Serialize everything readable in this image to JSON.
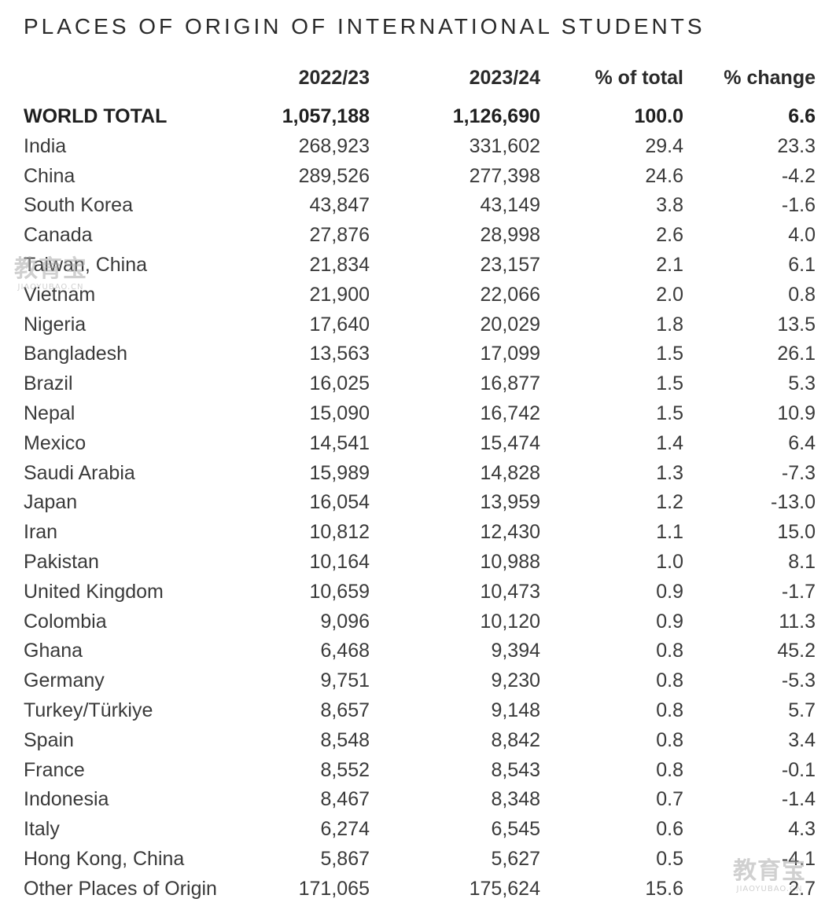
{
  "title": "PLACES OF ORIGIN OF INTERNATIONAL STUDENTS",
  "columns": {
    "y2022": "2022/23",
    "y2023": "2023/24",
    "pct_total": "% of total",
    "pct_change": "% change"
  },
  "total": {
    "label": "WORLD TOTAL",
    "y2022": "1,057,188",
    "y2023": "1,126,690",
    "pct_total": "100.0",
    "pct_change": "6.6"
  },
  "rows": [
    {
      "country": "India",
      "y2022": "268,923",
      "y2023": "331,602",
      "pct_total": "29.4",
      "pct_change": "23.3"
    },
    {
      "country": "China",
      "y2022": "289,526",
      "y2023": "277,398",
      "pct_total": "24.6",
      "pct_change": "-4.2"
    },
    {
      "country": "South Korea",
      "y2022": "43,847",
      "y2023": "43,149",
      "pct_total": "3.8",
      "pct_change": "-1.6"
    },
    {
      "country": "Canada",
      "y2022": "27,876",
      "y2023": "28,998",
      "pct_total": "2.6",
      "pct_change": "4.0"
    },
    {
      "country": "Taiwan, China",
      "y2022": "21,834",
      "y2023": "23,157",
      "pct_total": "2.1",
      "pct_change": "6.1"
    },
    {
      "country": "Vietnam",
      "y2022": "21,900",
      "y2023": "22,066",
      "pct_total": "2.0",
      "pct_change": "0.8"
    },
    {
      "country": "Nigeria",
      "y2022": "17,640",
      "y2023": "20,029",
      "pct_total": "1.8",
      "pct_change": "13.5"
    },
    {
      "country": "Bangladesh",
      "y2022": "13,563",
      "y2023": "17,099",
      "pct_total": "1.5",
      "pct_change": "26.1"
    },
    {
      "country": "Brazil",
      "y2022": "16,025",
      "y2023": "16,877",
      "pct_total": "1.5",
      "pct_change": "5.3"
    },
    {
      "country": "Nepal",
      "y2022": "15,090",
      "y2023": "16,742",
      "pct_total": "1.5",
      "pct_change": "10.9"
    },
    {
      "country": "Mexico",
      "y2022": "14,541",
      "y2023": "15,474",
      "pct_total": "1.4",
      "pct_change": "6.4"
    },
    {
      "country": "Saudi Arabia",
      "y2022": "15,989",
      "y2023": "14,828",
      "pct_total": "1.3",
      "pct_change": "-7.3"
    },
    {
      "country": "Japan",
      "y2022": "16,054",
      "y2023": "13,959",
      "pct_total": "1.2",
      "pct_change": "-13.0"
    },
    {
      "country": "Iran",
      "y2022": "10,812",
      "y2023": "12,430",
      "pct_total": "1.1",
      "pct_change": "15.0"
    },
    {
      "country": "Pakistan",
      "y2022": "10,164",
      "y2023": "10,988",
      "pct_total": "1.0",
      "pct_change": "8.1"
    },
    {
      "country": "United Kingdom",
      "y2022": "10,659",
      "y2023": "10,473",
      "pct_total": "0.9",
      "pct_change": "-1.7"
    },
    {
      "country": "Colombia",
      "y2022": "9,096",
      "y2023": "10,120",
      "pct_total": "0.9",
      "pct_change": "11.3"
    },
    {
      "country": "Ghana",
      "y2022": "6,468",
      "y2023": "9,394",
      "pct_total": "0.8",
      "pct_change": "45.2"
    },
    {
      "country": "Germany",
      "y2022": "9,751",
      "y2023": "9,230",
      "pct_total": "0.8",
      "pct_change": "-5.3"
    },
    {
      "country": "Turkey/Türkiye",
      "y2022": "8,657",
      "y2023": "9,148",
      "pct_total": "0.8",
      "pct_change": "5.7"
    },
    {
      "country": "Spain",
      "y2022": "8,548",
      "y2023": "8,842",
      "pct_total": "0.8",
      "pct_change": "3.4"
    },
    {
      "country": "France",
      "y2022": "8,552",
      "y2023": "8,543",
      "pct_total": "0.8",
      "pct_change": "-0.1"
    },
    {
      "country": "Indonesia",
      "y2022": "8,467",
      "y2023": "8,348",
      "pct_total": "0.7",
      "pct_change": "-1.4"
    },
    {
      "country": "Italy",
      "y2022": "6,274",
      "y2023": "6,545",
      "pct_total": "0.6",
      "pct_change": "4.3"
    },
    {
      "country": "Hong Kong, China",
      "y2022": "5,867",
      "y2023": "5,627",
      "pct_total": "0.5",
      "pct_change": "-4.1"
    },
    {
      "country": "Other Places of Origin",
      "y2022": "171,065",
      "y2023": "175,624",
      "pct_total": "15.6",
      "pct_change": "2.7"
    }
  ],
  "watermark": {
    "big": "教育宝",
    "small": "JIAOYUBAO.CN"
  }
}
